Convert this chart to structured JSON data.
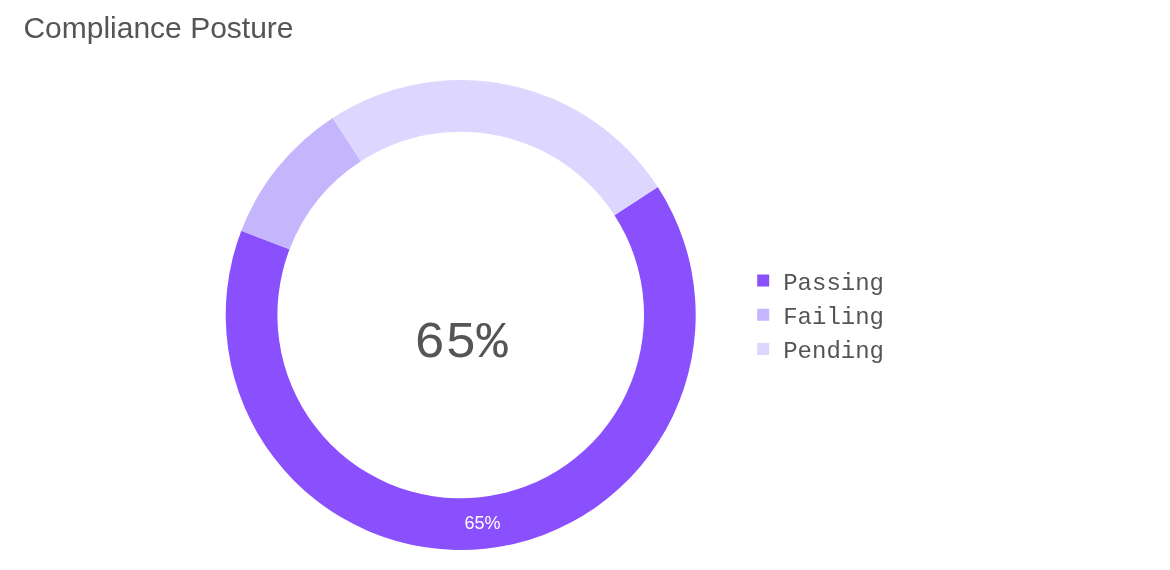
{
  "chart_data": {
    "type": "donut",
    "title": "Compliance Posture",
    "categories": [
      "Passing",
      "Failing",
      "Pending"
    ],
    "values": [
      65,
      10,
      25
    ],
    "colors": [
      "#8b50fe",
      "#c4b5fd",
      "#ddd6fe"
    ],
    "value_labels": [
      "65%",
      null,
      null
    ],
    "annotations": [
      "65%"
    ],
    "legend": "right"
  }
}
